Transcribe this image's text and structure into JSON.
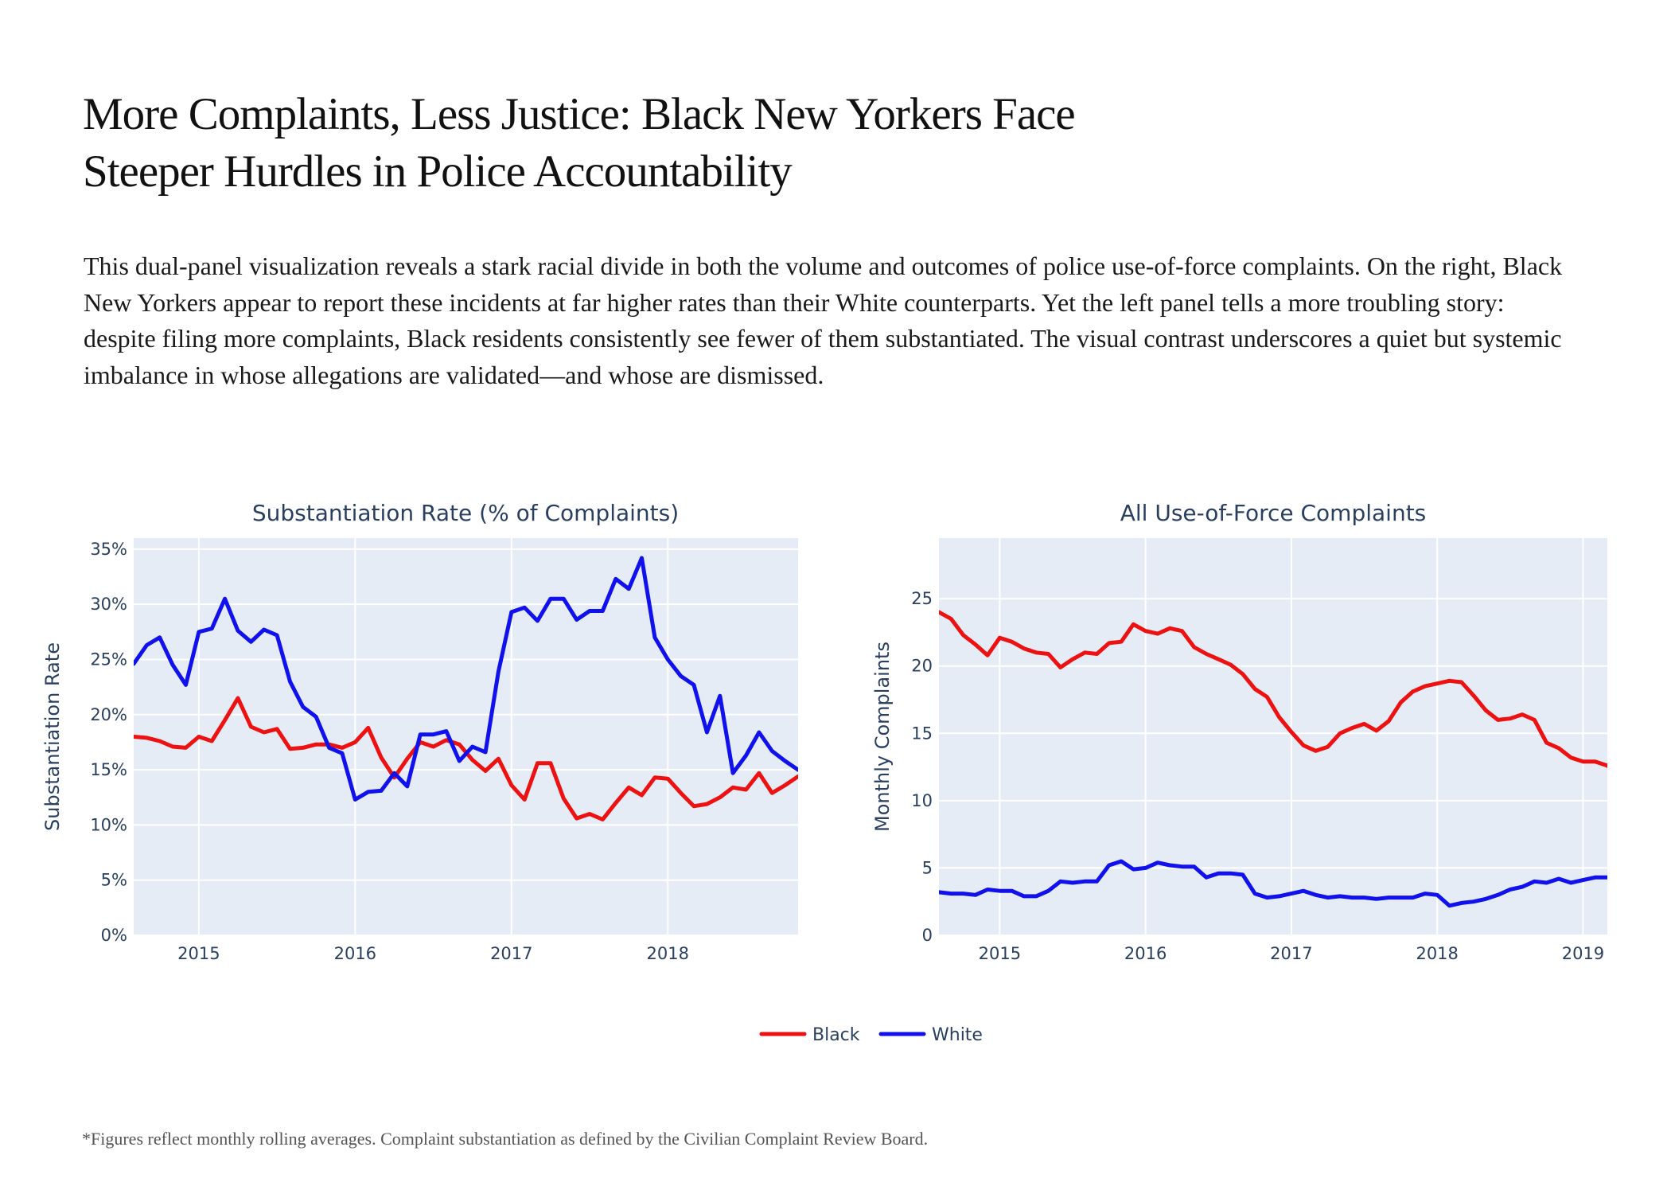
{
  "headline": {
    "line1": "More Complaints, Less Justice: Black New Yorkers Face",
    "line2": "Steeper Hurdles in Police Accountability"
  },
  "lede": "This dual-panel visualization reveals a stark racial divide in both the volume and outcomes of police use-of-force complaints. On the right, Black New Yorkers appear to report these incidents at far higher rates than their White counterparts. Yet the left panel tells a more troubling story: despite filing more complaints, Black residents consistently see fewer of them substantiated. The visual contrast underscores a quiet but systemic imbalance in whose allegations are validated—and whose are dismissed.",
  "footnote": "*Figures reflect monthly rolling averages. Complaint substantiation as defined by the Civilian Complaint Review Board.",
  "colors": {
    "black_series": "#ee1111",
    "white_series": "#1111ee",
    "plot_bg": "#e5ecf6",
    "grid": "#ffffff",
    "axis_text": "#2a3f5f"
  },
  "legend": {
    "items": [
      {
        "name": "Black",
        "color": "#ee1111"
      },
      {
        "name": "White",
        "color": "#1111ee"
      }
    ]
  },
  "chart_data": [
    {
      "type": "line",
      "title": "Substantiation Rate (% of Complaints)",
      "xlabel": "",
      "ylabel": "Substantiation Rate",
      "x_start": "2014-08",
      "xlim": [
        "2014-08",
        "2018-11"
      ],
      "ylim": [
        0,
        36
      ],
      "yticks": [
        0,
        5,
        10,
        15,
        20,
        25,
        30,
        35
      ],
      "ytick_labels": [
        "0%",
        "5%",
        "10%",
        "15%",
        "20%",
        "25%",
        "30%",
        "35%"
      ],
      "xticks": [
        "2015-01",
        "2016-01",
        "2017-01",
        "2018-01"
      ],
      "xtick_labels": [
        "2015",
        "2016",
        "2017",
        "2018"
      ],
      "grid": true,
      "series": [
        {
          "name": "Black",
          "color": "#ee1111",
          "values": [
            18.0,
            17.9,
            17.6,
            17.1,
            17.0,
            18.0,
            17.6,
            19.5,
            21.5,
            18.9,
            18.4,
            18.7,
            16.9,
            17.0,
            17.3,
            17.3,
            17.0,
            17.5,
            18.8,
            16.1,
            14.3,
            16.0,
            17.5,
            17.1,
            17.7,
            17.3,
            15.9,
            14.9,
            16.0,
            13.6,
            12.3,
            15.6,
            15.6,
            12.4,
            10.6,
            11.0,
            10.5,
            12.0,
            13.4,
            12.7,
            14.3,
            14.2,
            12.9,
            11.7,
            11.9,
            12.5,
            13.4,
            13.2,
            14.7,
            12.9,
            13.6,
            14.4
          ]
        },
        {
          "name": "White",
          "color": "#1111ee",
          "values": [
            24.6,
            26.3,
            27.0,
            24.5,
            22.7,
            27.5,
            27.8,
            30.5,
            27.6,
            26.6,
            27.7,
            27.2,
            23.0,
            20.7,
            19.8,
            17.0,
            16.5,
            12.3,
            13.0,
            13.1,
            14.7,
            13.5,
            18.2,
            18.2,
            18.5,
            15.8,
            17.1,
            16.6,
            23.9,
            29.3,
            29.7,
            28.5,
            30.5,
            30.5,
            28.6,
            29.4,
            29.4,
            32.3,
            31.4,
            34.2,
            27.0,
            25.0,
            23.5,
            22.7,
            18.4,
            21.7,
            14.7,
            16.3,
            18.4,
            16.7,
            15.8,
            15.0
          ]
        }
      ]
    },
    {
      "type": "line",
      "title": "All Use-of-Force Complaints",
      "xlabel": "",
      "ylabel": "Monthly Complaints",
      "x_start": "2014-08",
      "xlim": [
        "2014-08",
        "2019-03"
      ],
      "ylim": [
        0,
        29.5
      ],
      "yticks": [
        0,
        5,
        10,
        15,
        20,
        25
      ],
      "ytick_labels": [
        "0",
        "5",
        "10",
        "15",
        "20",
        "25"
      ],
      "xticks": [
        "2015-01",
        "2016-01",
        "2017-01",
        "2018-01",
        "2019-01"
      ],
      "xtick_labels": [
        "2015",
        "2016",
        "2017",
        "2018",
        "2019"
      ],
      "grid": true,
      "series": [
        {
          "name": "Black",
          "color": "#ee1111",
          "values": [
            24.0,
            23.5,
            22.3,
            21.6,
            20.8,
            22.1,
            21.8,
            21.3,
            21.0,
            20.9,
            19.9,
            20.5,
            21.0,
            20.9,
            21.7,
            21.8,
            23.1,
            22.6,
            22.4,
            22.8,
            22.6,
            21.4,
            20.9,
            20.5,
            20.1,
            19.4,
            18.3,
            17.7,
            16.2,
            15.1,
            14.1,
            13.7,
            14.0,
            15.0,
            15.4,
            15.7,
            15.2,
            15.9,
            17.3,
            18.1,
            18.5,
            18.7,
            18.9,
            18.8,
            17.8,
            16.7,
            16.0,
            16.1,
            16.4,
            16.0,
            14.3,
            13.9,
            13.2,
            12.9,
            12.9,
            12.6,
            12.0
          ]
        },
        {
          "name": "White",
          "color": "#1111ee",
          "values": [
            3.2,
            3.1,
            3.1,
            3.0,
            3.4,
            3.3,
            3.3,
            2.9,
            2.9,
            3.3,
            4.0,
            3.9,
            4.0,
            4.0,
            5.2,
            5.5,
            4.9,
            5.0,
            5.4,
            5.2,
            5.1,
            5.1,
            4.3,
            4.6,
            4.6,
            4.5,
            3.1,
            2.8,
            2.9,
            3.1,
            3.3,
            3.0,
            2.8,
            2.9,
            2.8,
            2.8,
            2.7,
            2.8,
            2.8,
            2.8,
            3.1,
            3.0,
            2.2,
            2.4,
            2.5,
            2.7,
            3.0,
            3.4,
            3.6,
            4.0,
            3.9,
            4.2,
            3.9,
            4.1,
            4.3,
            4.3,
            4.4
          ]
        }
      ]
    }
  ]
}
